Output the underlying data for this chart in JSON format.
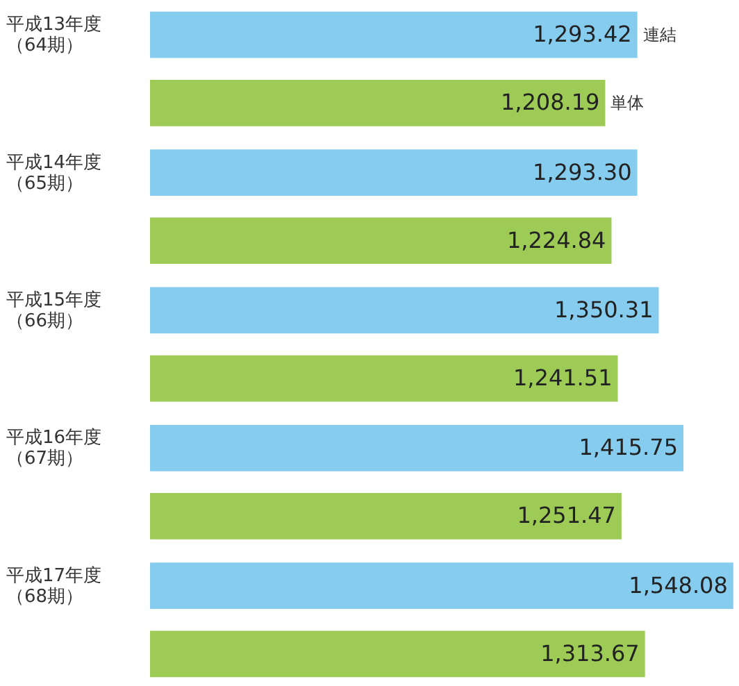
{
  "chart_data": {
    "type": "bar",
    "orientation": "horizontal",
    "categories": [
      "平成13年度（64期）",
      "平成14年度（65期）",
      "平成15年度（66期）",
      "平成16年度（67期）",
      "平成17年度（68期）"
    ],
    "series": [
      {
        "name": "連結",
        "color": "#86ccef",
        "values": [
          1293.42,
          1293.3,
          1350.31,
          1415.75,
          1548.08
        ],
        "value_labels": [
          "1,293.42",
          "1,293.30",
          "1,350.31",
          "1,415.75",
          "1,548.08"
        ]
      },
      {
        "name": "単体",
        "color": "#9dcb55",
        "values": [
          1208.19,
          1224.84,
          1241.51,
          1251.47,
          1313.67
        ],
        "value_labels": [
          "1,208.19",
          "1,224.84",
          "1,241.51",
          "1,251.47",
          "1,313.67"
        ]
      }
    ]
  }
}
